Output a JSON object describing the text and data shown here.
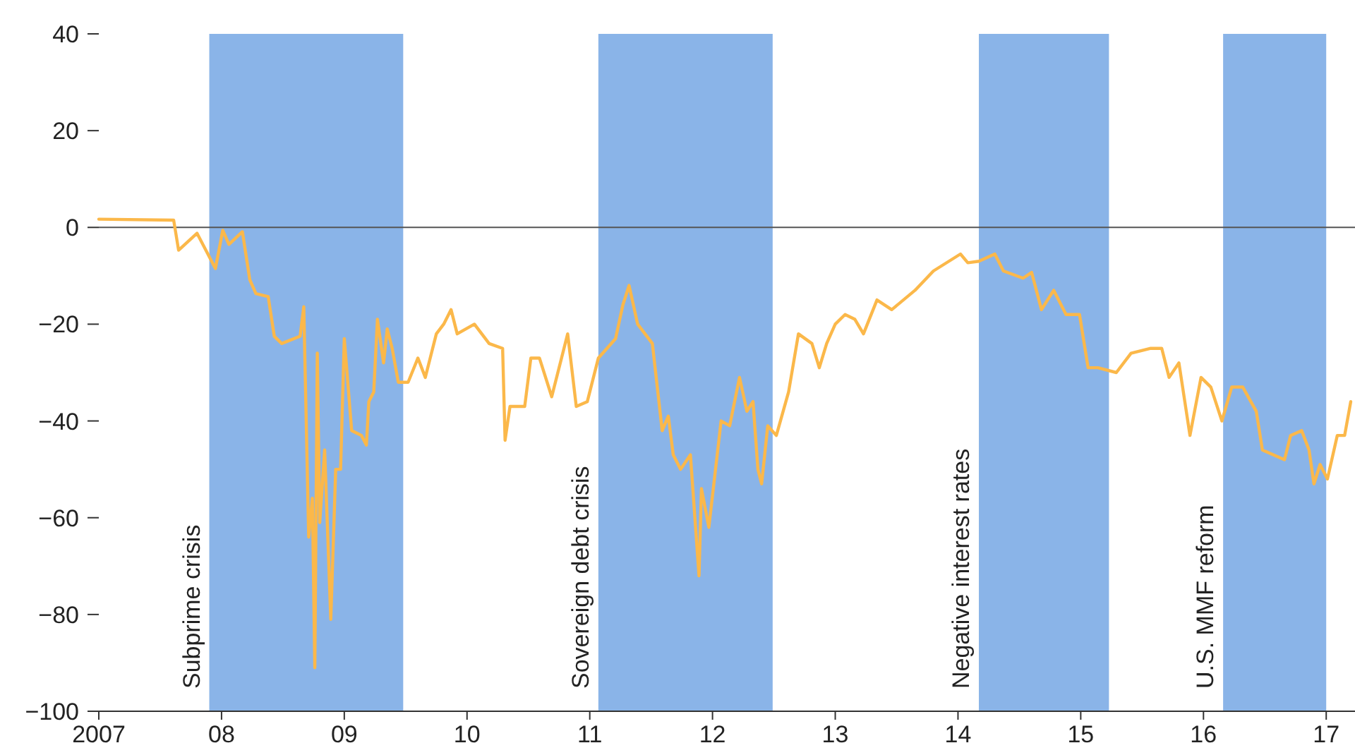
{
  "chart_data": {
    "type": "line",
    "x": [
      2007.0,
      2007.61,
      2007.65,
      2007.8,
      2007.95,
      2008.01,
      2008.06,
      2008.17,
      2008.23,
      2008.28,
      2008.38,
      2008.43,
      2008.49,
      2008.64,
      2008.67,
      2008.71,
      2008.74,
      2008.76,
      2008.78,
      2008.8,
      2008.84,
      2008.89,
      2008.93,
      2008.97,
      2009.0,
      2009.06,
      2009.14,
      2009.18,
      2009.2,
      2009.24,
      2009.27,
      2009.32,
      2009.35,
      2009.39,
      2009.44,
      2009.52,
      2009.6,
      2009.66,
      2009.75,
      2009.81,
      2009.87,
      2009.92,
      2010.06,
      2010.18,
      2010.29,
      2010.31,
      2010.35,
      2010.47,
      2010.52,
      2010.59,
      2010.69,
      2010.82,
      2010.89,
      2010.98,
      2011.07,
      2011.21,
      2011.27,
      2011.32,
      2011.39,
      2011.45,
      2011.51,
      2011.59,
      2011.64,
      2011.68,
      2011.74,
      2011.82,
      2011.89,
      2011.91,
      2011.97,
      2012.07,
      2012.14,
      2012.22,
      2012.28,
      2012.33,
      2012.37,
      2012.4,
      2012.45,
      2012.52,
      2012.62,
      2012.7,
      2012.81,
      2012.87,
      2012.93,
      2013.0,
      2013.08,
      2013.16,
      2013.23,
      2013.34,
      2013.46,
      2013.65,
      2013.8,
      2014.02,
      2014.08,
      2014.17,
      2014.3,
      2014.37,
      2014.53,
      2014.6,
      2014.68,
      2014.78,
      2014.88,
      2014.99,
      2015.06,
      2015.14,
      2015.29,
      2015.41,
      2015.57,
      2015.66,
      2015.72,
      2015.8,
      2015.89,
      2015.98,
      2016.06,
      2016.15,
      2016.23,
      2016.32,
      2016.43,
      2016.48,
      2016.66,
      2016.71,
      2016.8,
      2016.86,
      2016.9,
      2016.95,
      2017.01,
      2017.09,
      2017.15,
      2017.2
    ],
    "series": [
      {
        "color": "#fbb84a",
        "values": [
          1.7,
          1.5,
          -4.7,
          -1.2,
          -8.5,
          -0.6,
          -3.5,
          -0.9,
          -10.8,
          -13.7,
          -14.3,
          -22.5,
          -24,
          -22.5,
          -16.4,
          -64,
          -56,
          -91,
          -26,
          -61,
          -46,
          -81,
          -50,
          -50,
          -23,
          -42,
          -43,
          -45,
          -36,
          -34,
          -19,
          -28,
          -21,
          -25,
          -32,
          -32,
          -27,
          -31,
          -22,
          -20,
          -17,
          -22,
          -20,
          -24,
          -25,
          -44,
          -37,
          -37,
          -27,
          -27,
          -35,
          -22,
          -37,
          -36,
          -27,
          -23,
          -16,
          -12,
          -20,
          -22,
          -24,
          -42,
          -39,
          -47,
          -50,
          -47,
          -72,
          -54,
          -62,
          -40,
          -41,
          -31,
          -38,
          -36,
          -50,
          -53,
          -41,
          -43,
          -34,
          -22,
          -24,
          -29,
          -24,
          -20,
          -18,
          -19,
          -22,
          -15,
          -17,
          -13,
          -9,
          -5.5,
          -7.3,
          -7,
          -5.5,
          -9,
          -10.5,
          -9.3,
          -17,
          -13,
          -18,
          -18,
          -29,
          -29,
          -30,
          -26,
          -25,
          -25,
          -31,
          -28,
          -43,
          -31,
          -33,
          -40,
          -33,
          -33,
          -38,
          -46,
          -48,
          -43,
          -42,
          -46,
          -53,
          -49,
          -52,
          -43,
          -43,
          -36
        ]
      }
    ],
    "xlim": [
      2007,
      2017.2
    ],
    "xticks": [
      {
        "value": 2007,
        "label": "2007"
      },
      {
        "value": 2008,
        "label": "08"
      },
      {
        "value": 2009,
        "label": "09"
      },
      {
        "value": 2010,
        "label": "10"
      },
      {
        "value": 2011,
        "label": "11"
      },
      {
        "value": 2012,
        "label": "12"
      },
      {
        "value": 2013,
        "label": "13"
      },
      {
        "value": 2014,
        "label": "14"
      },
      {
        "value": 2015,
        "label": "15"
      },
      {
        "value": 2016,
        "label": "16"
      },
      {
        "value": 2017,
        "label": "17"
      }
    ],
    "ylim": [
      -100,
      40
    ],
    "yticks": [
      40,
      20,
      0,
      -20,
      -40,
      -60,
      -80,
      -100
    ],
    "ref_lines": [
      {
        "axis": "y",
        "value": 0,
        "color": "#555555"
      }
    ],
    "bands": [
      {
        "axis": "x",
        "from": 2007.9,
        "to": 2009.48,
        "label": "Subprime crisis",
        "color": "#8ab4e8"
      },
      {
        "axis": "x",
        "from": 2011.07,
        "to": 2012.49,
        "label": "Sovereign debt crisis",
        "color": "#8ab4e8"
      },
      {
        "axis": "x",
        "from": 2014.17,
        "to": 2015.23,
        "label": "Negative interest rates",
        "color": "#8ab4e8"
      },
      {
        "axis": "x",
        "from": 2016.16,
        "to": 2017.0,
        "label": "U.S. MMF reform",
        "color": "#8ab4e8"
      }
    ],
    "grid": false,
    "marker": "none",
    "line_style": "solid"
  }
}
